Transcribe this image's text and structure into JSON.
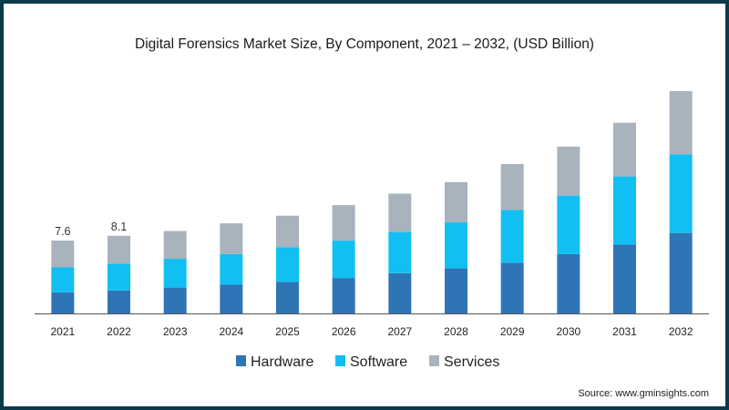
{
  "chart_data": {
    "type": "bar",
    "stacked": true,
    "title": "Digital Forensics Market Size, By Component, 2021 – 2032, (USD Billion)",
    "xlabel": "",
    "ylabel": "",
    "categories": [
      "2021",
      "2022",
      "2023",
      "2024",
      "2025",
      "2026",
      "2027",
      "2028",
      "2029",
      "2030",
      "2031",
      "2032"
    ],
    "series": [
      {
        "name": "Hardware",
        "color": "#2e75b6",
        "values": [
          2.2,
          2.4,
          2.7,
          3.0,
          3.3,
          3.7,
          4.2,
          4.7,
          5.3,
          6.2,
          7.2,
          8.4
        ]
      },
      {
        "name": "Software",
        "color": "#12bff2",
        "values": [
          2.6,
          2.8,
          3.0,
          3.2,
          3.6,
          3.9,
          4.3,
          4.8,
          5.5,
          6.1,
          7.1,
          8.2
        ]
      },
      {
        "name": "Services",
        "color": "#a8b3bd",
        "values": [
          2.8,
          2.9,
          2.9,
          3.2,
          3.3,
          3.7,
          4.0,
          4.2,
          4.8,
          5.1,
          5.6,
          6.6
        ]
      }
    ],
    "data_labels": [
      {
        "category": "2021",
        "text": "7.6"
      },
      {
        "category": "2022",
        "text": "8.1"
      }
    ],
    "ylim": [
      0,
      23.2
    ],
    "grid": false,
    "legend": "bottom",
    "source": "Source: www.gminsights.com"
  }
}
